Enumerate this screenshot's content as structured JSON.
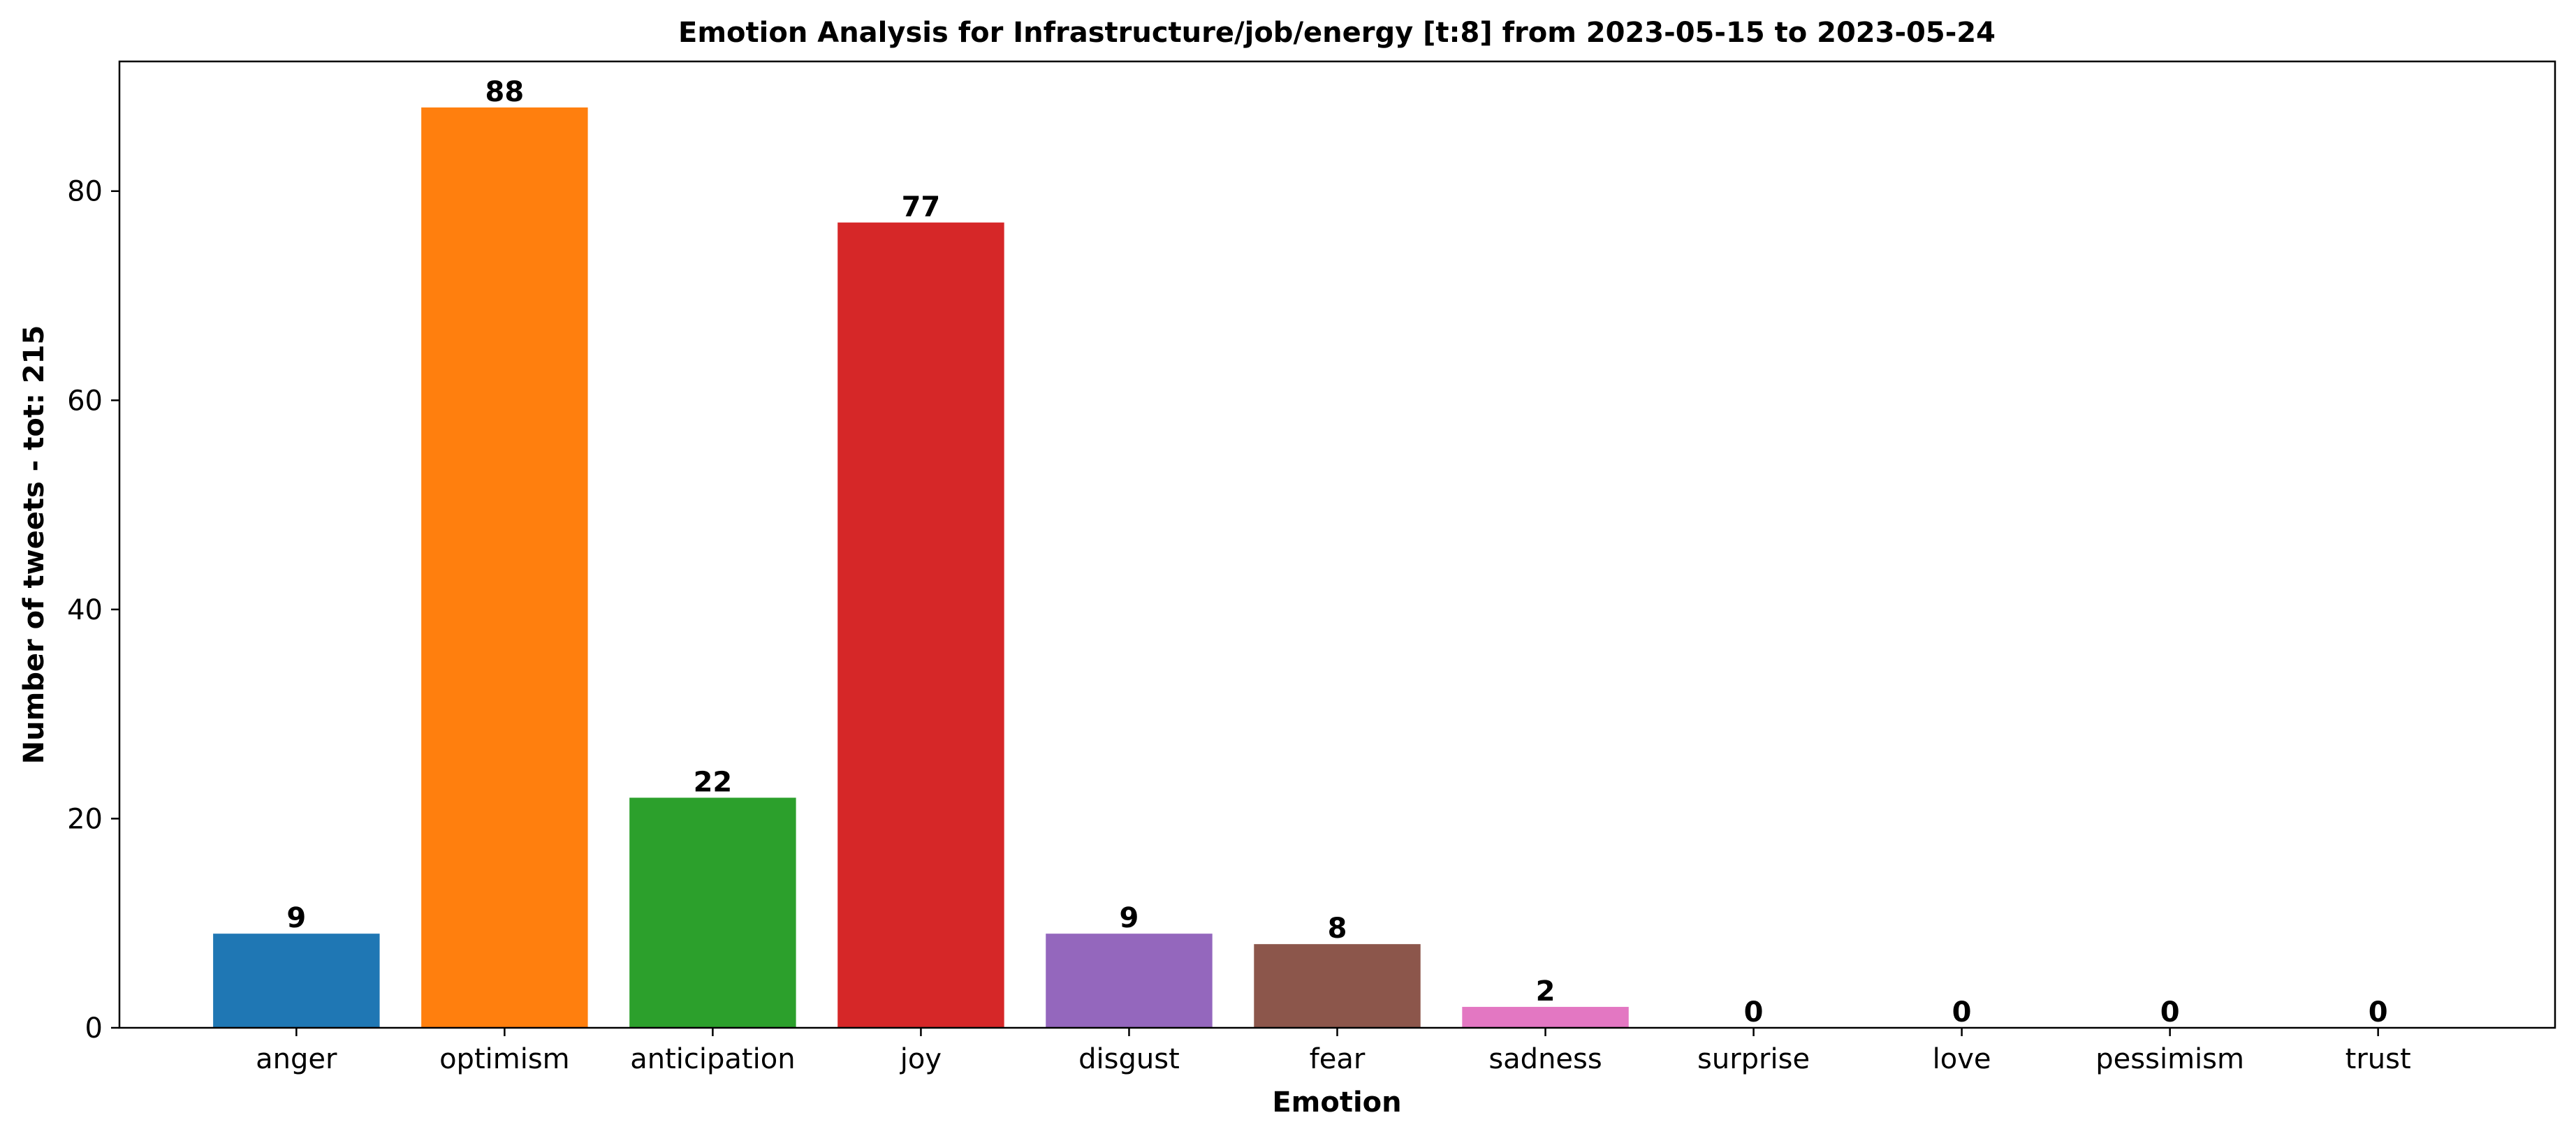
{
  "chart_data": {
    "type": "bar",
    "title": "Emotion Analysis for Infrastructure/job/energy [t:8] from 2023-05-15 to 2023-05-24",
    "xlabel": "Emotion",
    "ylabel": "Number of tweets - tot: 215",
    "categories": [
      "anger",
      "optimism",
      "anticipation",
      "joy",
      "disgust",
      "fear",
      "sadness",
      "surprise",
      "love",
      "pessimism",
      "trust"
    ],
    "values": [
      9,
      88,
      22,
      77,
      9,
      8,
      2,
      0,
      0,
      0,
      0
    ],
    "colors": [
      "#1f77b4",
      "#ff7f0e",
      "#2ca02c",
      "#d62728",
      "#9467bd",
      "#8c564b",
      "#e377c2",
      "#7f7f7f",
      "#bcbd22",
      "#17becf",
      "#1f77b4"
    ],
    "ylim": [
      0,
      92.4
    ],
    "yticks": [
      0,
      20,
      40,
      60,
      80
    ],
    "grid": false,
    "legend": "none"
  }
}
